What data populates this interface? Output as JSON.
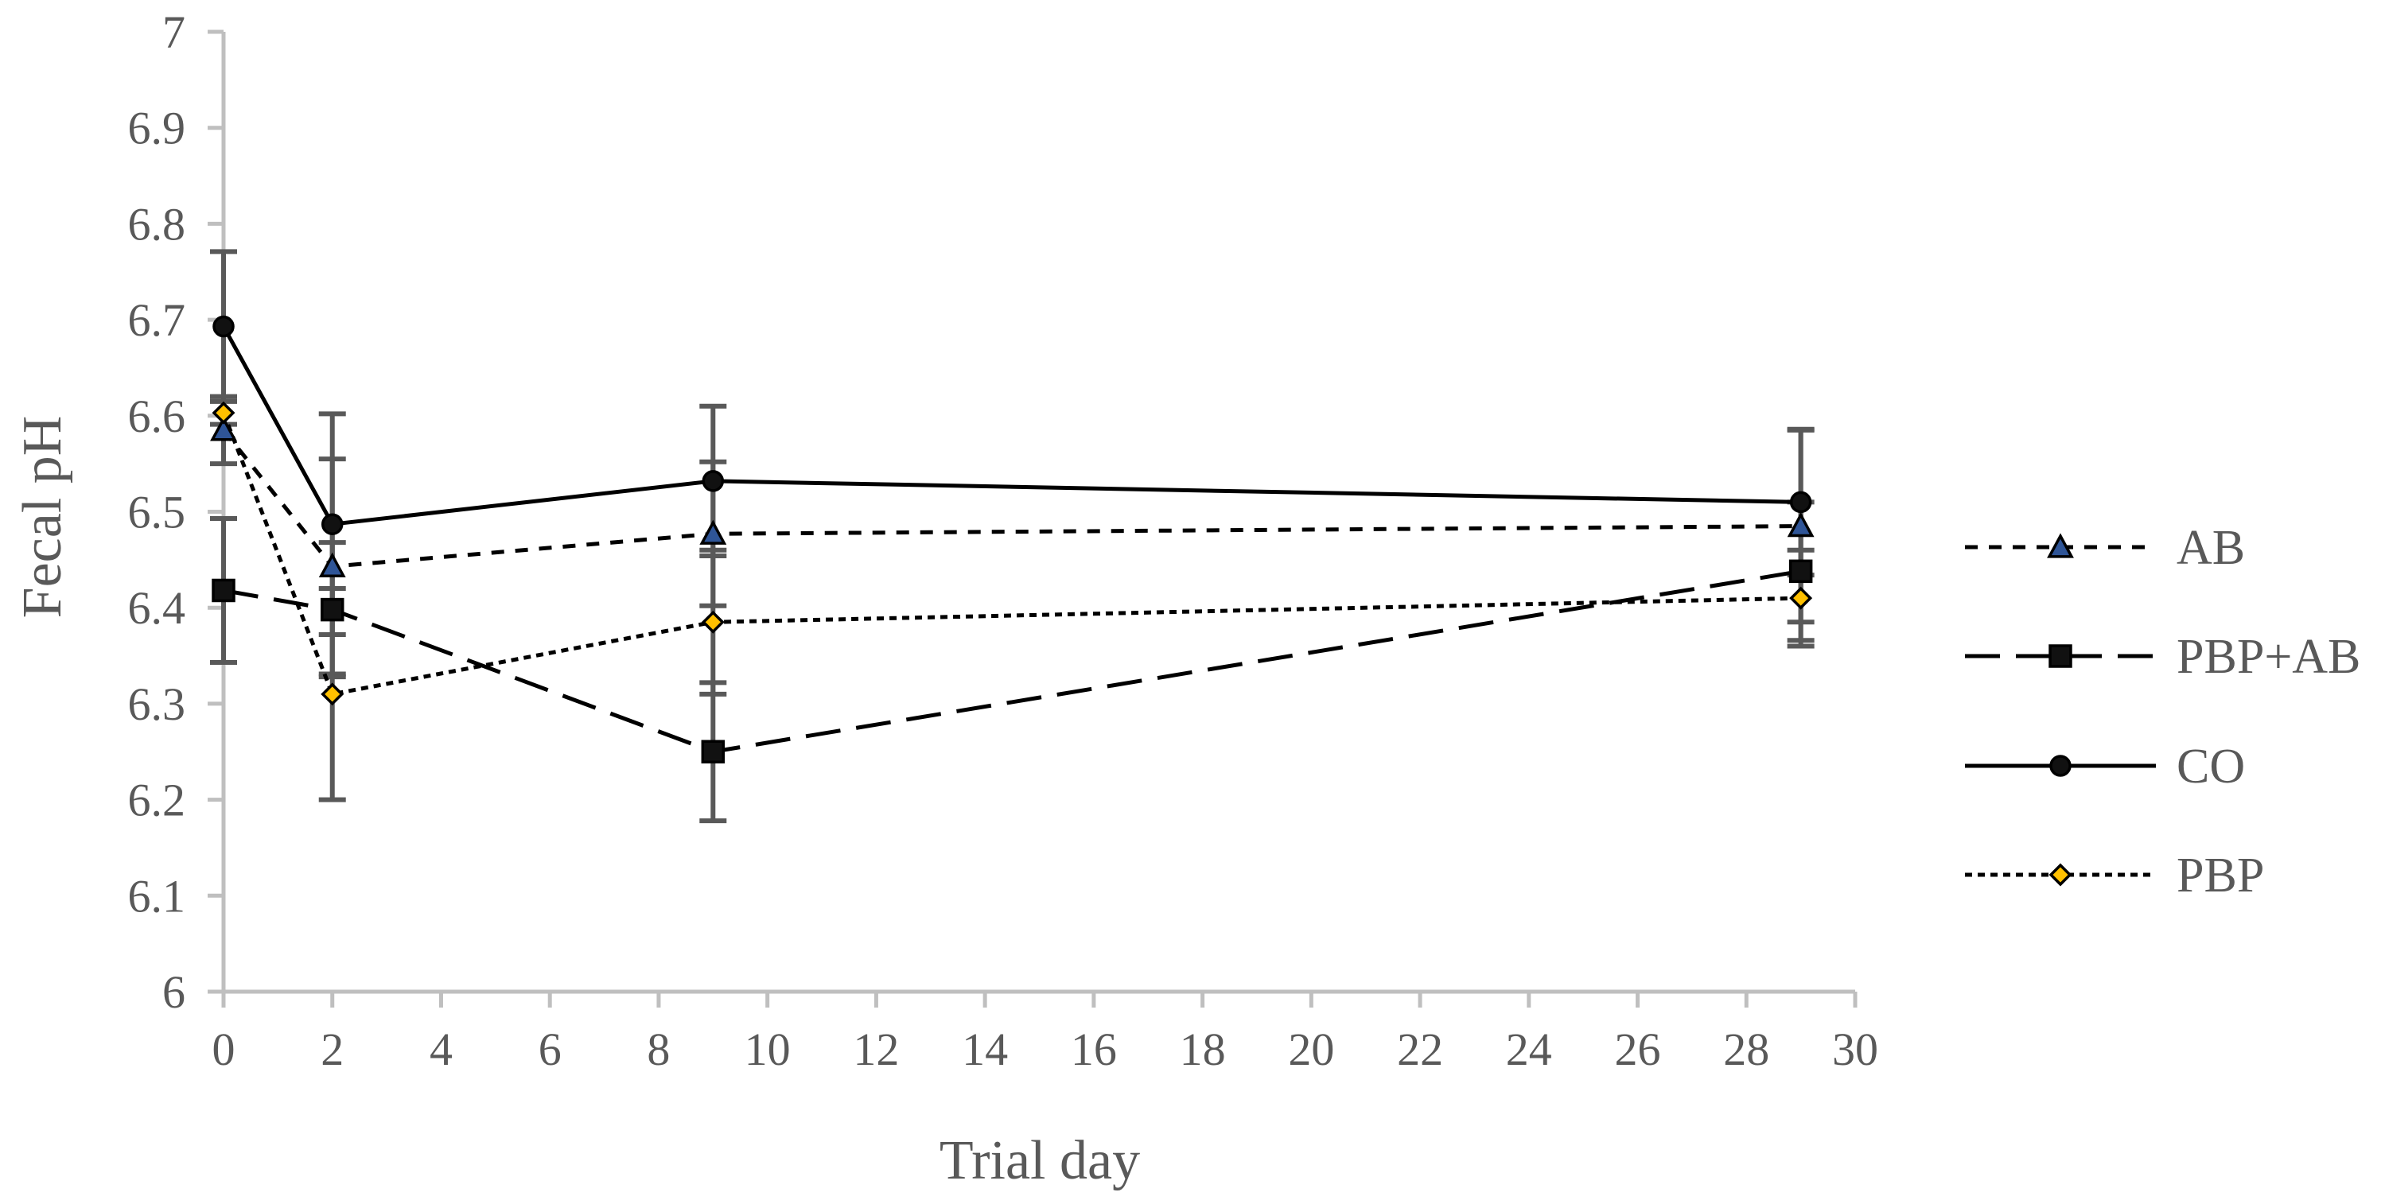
{
  "chart_data": {
    "type": "line",
    "title": "",
    "xlabel": "Trial day",
    "ylabel": "Fecal pH",
    "xlim": [
      0,
      30
    ],
    "ylim": [
      6,
      7
    ],
    "x_ticks": [
      0,
      2,
      4,
      6,
      8,
      10,
      12,
      14,
      16,
      18,
      20,
      22,
      24,
      26,
      28,
      30
    ],
    "y_ticks": [
      6,
      6.1,
      6.2,
      6.3,
      6.4,
      6.5,
      6.6,
      6.7,
      6.8,
      6.9,
      7
    ],
    "x_tick_labels": [
      "0",
      "2",
      "4",
      "6",
      "8",
      "10",
      "12",
      "14",
      "16",
      "18",
      "20",
      "22",
      "24",
      "26",
      "28",
      "30"
    ],
    "y_tick_labels": [
      "6",
      "6.1",
      "6.2",
      "6.3",
      "6.4",
      "6.5",
      "6.6",
      "6.7",
      "6.8",
      "6.9",
      "7"
    ],
    "grid": false,
    "legend_position": "right",
    "x": [
      0,
      2,
      9,
      29
    ],
    "series": [
      {
        "name": "AB",
        "values": [
          6.585,
          6.443,
          6.477,
          6.485
        ],
        "errors": [
          0.035,
          0.112,
          0.075,
          0.1
        ],
        "line_style": "short-dash",
        "marker": "triangle",
        "marker_fill": "#2F5597"
      },
      {
        "name": "PBP+AB",
        "values": [
          6.418,
          6.398,
          6.25,
          6.438
        ],
        "errors": [
          0.075,
          0.07,
          0.072,
          0.072
        ],
        "line_style": "long-dash",
        "marker": "square",
        "marker_fill": "#111111"
      },
      {
        "name": "CO",
        "values": [
          6.693,
          6.487,
          6.532,
          6.51
        ],
        "errors": [
          0.078,
          0.115,
          0.078,
          0.076
        ],
        "line_style": "solid",
        "marker": "circle",
        "marker_fill": "#111111"
      },
      {
        "name": "PBP",
        "values": [
          6.603,
          6.31,
          6.385,
          6.41
        ],
        "errors": [
          0.012,
          0.11,
          0.075,
          0.05
        ],
        "line_style": "dotted",
        "marker": "diamond",
        "marker_fill": "#FFC000"
      }
    ]
  },
  "colors": {
    "line": "#000000",
    "axis": "#BFBFBF",
    "error_bar": "#595959",
    "text": "#595959"
  }
}
